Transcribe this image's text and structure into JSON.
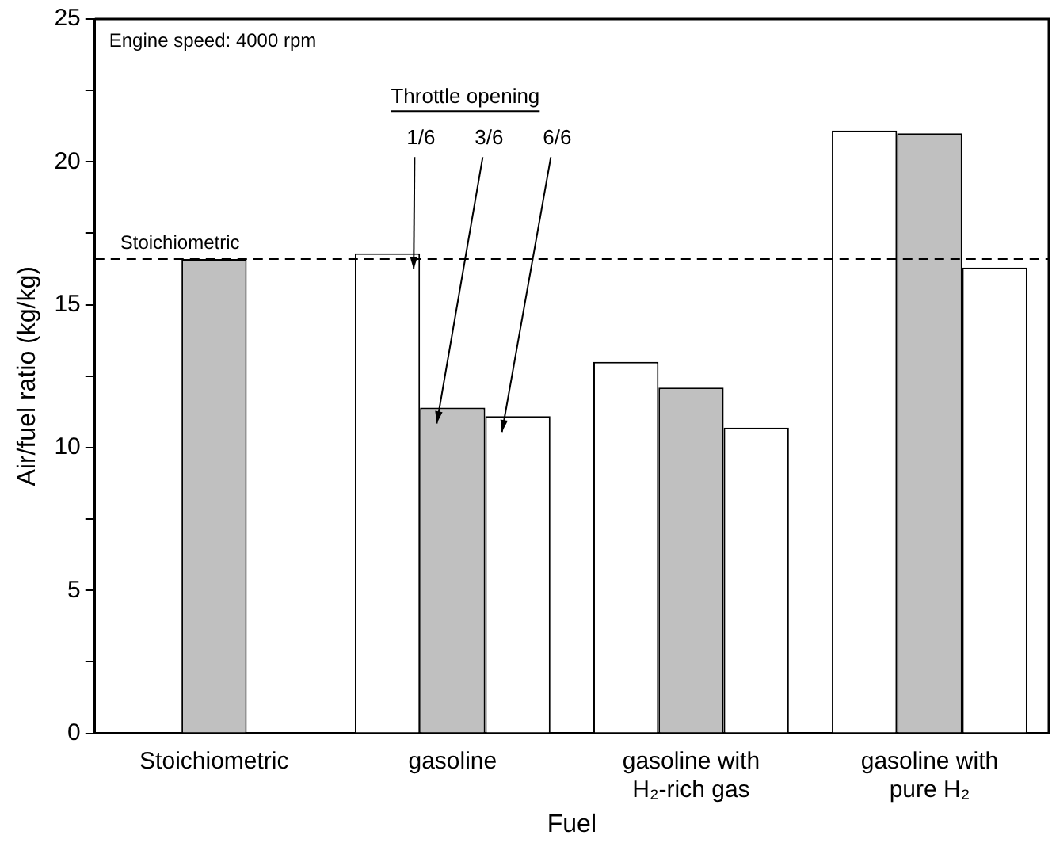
{
  "chart_data": {
    "type": "bar",
    "xlabel": "Fuel",
    "ylabel": "Air/fuel ratio (kg/kg)",
    "legend_title": "Throttle opening",
    "legend": "top",
    "categories": [
      "Stoichiometric",
      "gasoline",
      "gasoline with H₂-rich gas",
      "gasoline with pure H₂"
    ],
    "series": [
      {
        "name": "1/6",
        "color": "#ffffff",
        "values": [
          null,
          16.8,
          13.0,
          21.1
        ]
      },
      {
        "name": "3/6",
        "color": "#c0c0c0",
        "values": [
          16.6,
          11.4,
          12.1,
          21.0
        ]
      },
      {
        "name": "6/6",
        "color": "#ffffff",
        "values": [
          null,
          11.1,
          10.7,
          16.3
        ]
      }
    ],
    "ylim": [
      0,
      25
    ],
    "yticks": [
      0,
      {
        "value": 2.5,
        "label": null
      },
      5,
      {
        "value": 7.5,
        "label": null
      },
      10,
      {
        "value": 12.5,
        "label": null
      },
      15,
      {
        "value": 17.5,
        "label": null
      },
      20,
      {
        "value": 22.5,
        "label": null
      },
      25
    ],
    "grid": false,
    "ref_lines": [
      {
        "axis": "y",
        "value": 16.6,
        "label": "Stoichiometric",
        "line_style": "dashed",
        "color": "#000000"
      }
    ],
    "annotations": [
      "Engine speed: 4000 rpm"
    ]
  }
}
